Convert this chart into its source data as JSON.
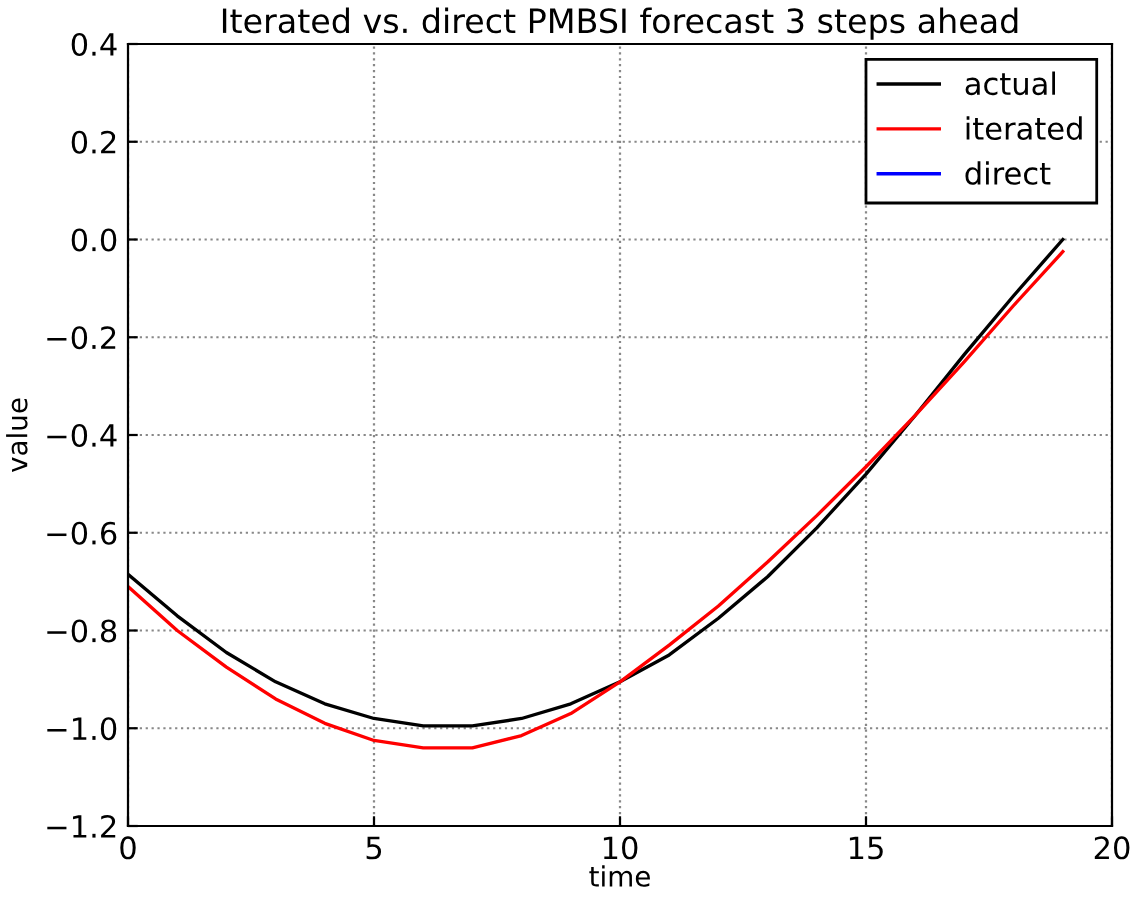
{
  "chart_data": {
    "type": "line",
    "title": "Iterated vs. direct PMBSI forecast 3 steps ahead",
    "xlabel": "time",
    "ylabel": "value",
    "x": [
      0,
      1,
      2,
      3,
      4,
      5,
      6,
      7,
      8,
      9,
      10,
      11,
      12,
      13,
      14,
      15,
      16,
      17,
      18,
      19
    ],
    "series": [
      {
        "name": "actual",
        "color": "#000000",
        "values": [
          -0.685,
          -0.77,
          -0.845,
          -0.905,
          -0.95,
          -0.98,
          -0.995,
          -0.995,
          -0.98,
          -0.95,
          -0.905,
          -0.85,
          -0.775,
          -0.69,
          -0.59,
          -0.48,
          -0.36,
          -0.235,
          -0.115,
          0.0
        ]
      },
      {
        "name": "iterated",
        "color": "#ff0000",
        "values": [
          -0.71,
          -0.8,
          -0.875,
          -0.94,
          -0.99,
          -1.025,
          -1.04,
          -1.04,
          -1.015,
          -0.97,
          -0.905,
          -0.83,
          -0.75,
          -0.66,
          -0.565,
          -0.465,
          -0.36,
          -0.25,
          -0.135,
          -0.025
        ]
      },
      {
        "name": "direct",
        "color": "#0000ff",
        "values": [
          null,
          null,
          null,
          null,
          null,
          null,
          null,
          null,
          null,
          null,
          null,
          null,
          null,
          null,
          null,
          null,
          null,
          null,
          null,
          null
        ]
      }
    ],
    "xlim": [
      0,
      20
    ],
    "xticks": [
      0,
      5,
      10,
      15,
      20
    ],
    "ylim": [
      -1.2,
      0.4
    ],
    "yticks": [
      {
        "value": -1.2,
        "label": "−1.2"
      },
      {
        "value": -1.0,
        "label": "−1.0"
      },
      {
        "value": -0.8,
        "label": "−0.8"
      },
      {
        "value": -0.6,
        "label": "−0.6"
      },
      {
        "value": -0.4,
        "label": "−0.4"
      },
      {
        "value": -0.2,
        "label": "−0.2"
      },
      {
        "value": 0.0,
        "label": "0.0"
      },
      {
        "value": 0.2,
        "label": "0.2"
      },
      {
        "value": 0.4,
        "label": "0.4"
      }
    ],
    "grid": true,
    "legend": "top right",
    "line_style": "solid"
  }
}
